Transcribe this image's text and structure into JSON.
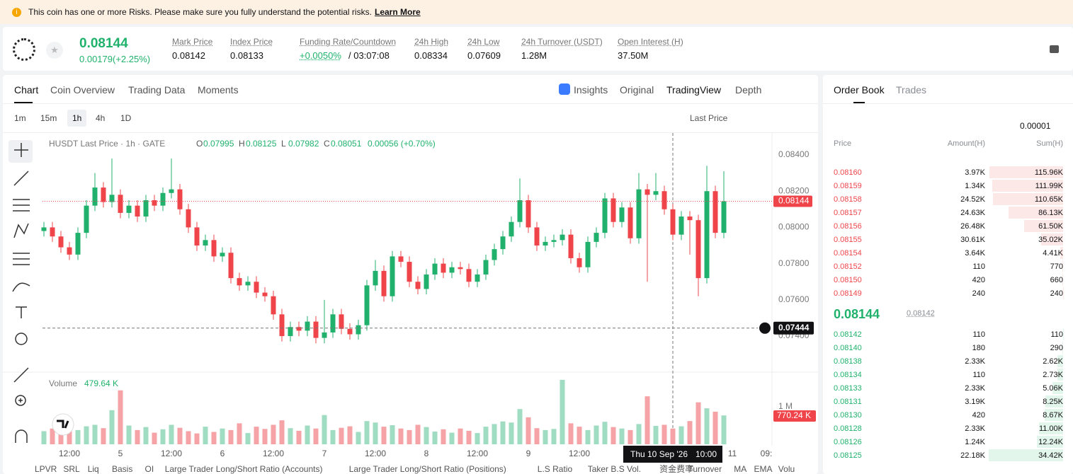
{
  "warning": {
    "text": "This coin has one or more Risks. Please make sure you fully understand the potential risks.",
    "link": "Learn More"
  },
  "header": {
    "price": "0.08144",
    "change": "0.00179(+2.25%)",
    "stats": [
      {
        "label": "Mark Price",
        "value": "0.08142"
      },
      {
        "label": "Index Price",
        "value": "0.08133"
      },
      {
        "label": "Funding Rate/Countdown",
        "value": "+0.0050%",
        "extra": "/ 03:07:08"
      },
      {
        "label": "24h High",
        "value": "0.08334"
      },
      {
        "label": "24h Low",
        "value": "0.07609"
      },
      {
        "label": "24h Turnover (USDT)",
        "value": "1.28M"
      },
      {
        "label": "Open Interest (H)",
        "value": "37.50M"
      }
    ]
  },
  "tabs": [
    "Chart",
    "Coin Overview",
    "Trading Data",
    "Moments"
  ],
  "view_tabs": [
    "Insights",
    "Original",
    "TradingView",
    "Depth"
  ],
  "intervals": [
    "1m",
    "15m",
    "1h",
    "4h",
    "1D"
  ],
  "price_type": "Last Price",
  "legend": {
    "symbol": "HUSDT Last Price · 1h · GATE",
    "ohlc": [
      {
        "key": "O",
        "value": "0.07995"
      },
      {
        "key": "H",
        "value": "0.08125"
      },
      {
        "key": "L",
        "value": "0.07982"
      },
      {
        "key": "C",
        "value": "0.08051"
      }
    ],
    "change": "0.00056 (+0.70%)"
  },
  "volume_legend": {
    "name": "Volume",
    "value": "479.64 K",
    "last": "770.24 K"
  },
  "chart_data": {
    "type": "candlestick",
    "up_color": "#20b26c",
    "down_color": "#ef454a",
    "grid": false,
    "categories": [
      null,
      null,
      null,
      "12:00",
      null,
      null,
      null,
      null,
      null,
      "5",
      null,
      null,
      null,
      null,
      null,
      "12:00",
      null,
      null,
      null,
      null,
      null,
      "6",
      null,
      null,
      null,
      null,
      null,
      "12:00",
      null,
      null,
      null,
      null,
      null,
      "7",
      null,
      null,
      null,
      null,
      null,
      "12:00",
      null,
      null,
      null,
      null,
      null,
      "8",
      null,
      null,
      null,
      null,
      null,
      "12:00",
      null,
      null,
      null,
      null,
      null,
      "9",
      null,
      null,
      null,
      null,
      null,
      "12:00",
      null,
      null,
      null,
      null,
      null,
      null,
      null,
      null,
      null,
      null,
      null,
      null,
      null,
      null,
      null,
      null,
      null
    ],
    "extra_x_labels": [
      "11",
      "09:"
    ],
    "open": [
      0.0798,
      0.08,
      0.0795,
      0.0789,
      0.0785,
      0.0797,
      0.0812,
      0.0822,
      0.0814,
      0.0818,
      0.0808,
      0.0812,
      0.0806,
      0.0815,
      0.0812,
      0.0819,
      0.0821,
      0.081,
      0.08,
      0.079,
      0.0793,
      0.0784,
      0.0786,
      0.0772,
      0.0768,
      0.077,
      0.0764,
      0.0762,
      0.0752,
      0.074,
      0.0745,
      0.0743,
      0.0748,
      0.0739,
      0.0742,
      0.0752,
      0.0744,
      0.0741,
      0.0746,
      0.0768,
      0.0776,
      0.0762,
      0.0784,
      0.0781,
      0.077,
      0.0766,
      0.0774,
      0.078,
      0.0775,
      0.0778,
      0.0777,
      0.077,
      0.0774,
      0.0782,
      0.0788,
      0.0795,
      0.0803,
      0.0815,
      0.08,
      0.079,
      0.0792,
      0.0793,
      0.0796,
      0.0783,
      0.0778,
      0.0792,
      0.0797,
      0.0816,
      0.0803,
      0.0811,
      0.0794,
      0.0821,
      0.0818,
      0.082,
      0.081,
      0.0796,
      0.0806,
      0.0804,
      0.0772,
      0.082,
      0.0797
    ],
    "high": [
      0.0803,
      0.0803,
      0.0798,
      0.0792,
      0.08,
      0.0815,
      0.083,
      0.0825,
      0.0838,
      0.0821,
      0.0815,
      0.0815,
      0.0818,
      0.0818,
      0.0822,
      0.0838,
      0.0824,
      0.0813,
      0.0803,
      0.0796,
      0.0796,
      0.0789,
      0.0789,
      0.0775,
      0.0773,
      0.0773,
      0.0767,
      0.0765,
      0.0755,
      0.0748,
      0.0748,
      0.0751,
      0.0751,
      0.076,
      0.0755,
      0.0755,
      0.0747,
      0.0749,
      0.0771,
      0.0782,
      0.0779,
      0.0787,
      0.0787,
      0.0784,
      0.0773,
      0.0777,
      0.0783,
      0.0783,
      0.0781,
      0.0781,
      0.078,
      0.0777,
      0.0785,
      0.0791,
      0.0798,
      0.0806,
      0.0827,
      0.0818,
      0.0803,
      0.0795,
      0.0796,
      0.0799,
      0.0799,
      0.0786,
      0.0795,
      0.08,
      0.0819,
      0.0819,
      0.0814,
      0.0814,
      0.083,
      0.0824,
      0.083,
      0.0823,
      0.0813,
      0.0809,
      0.0809,
      0.0807,
      0.0834,
      0.0823,
      0.0831
    ],
    "low": [
      0.0795,
      0.0792,
      0.0786,
      0.0782,
      0.0782,
      0.0794,
      0.0809,
      0.0811,
      0.0811,
      0.0805,
      0.0805,
      0.0803,
      0.0803,
      0.0809,
      0.0809,
      0.0816,
      0.0807,
      0.0797,
      0.0787,
      0.0787,
      0.0781,
      0.0781,
      0.0769,
      0.0765,
      0.0765,
      0.0761,
      0.0759,
      0.0749,
      0.0737,
      0.0737,
      0.074,
      0.074,
      0.0736,
      0.0736,
      0.0739,
      0.0741,
      0.0738,
      0.0738,
      0.0743,
      0.0765,
      0.0759,
      0.0759,
      0.0778,
      0.0767,
      0.0763,
      0.0763,
      0.0771,
      0.0772,
      0.0772,
      0.0774,
      0.0767,
      0.0767,
      0.0771,
      0.0779,
      0.0785,
      0.0792,
      0.08,
      0.0797,
      0.0787,
      0.0787,
      0.0789,
      0.079,
      0.078,
      0.0775,
      0.0775,
      0.0789,
      0.0794,
      0.08,
      0.08,
      0.0791,
      0.0791,
      0.077,
      0.0815,
      0.0807,
      0.0793,
      0.0793,
      0.0785,
      0.0762,
      0.0769,
      0.0794,
      0.0794
    ],
    "close": [
      0.08,
      0.0795,
      0.0789,
      0.0785,
      0.0797,
      0.0812,
      0.0822,
      0.0814,
      0.0818,
      0.0808,
      0.0812,
      0.0806,
      0.0815,
      0.0812,
      0.0819,
      0.0821,
      0.081,
      0.08,
      0.079,
      0.0793,
      0.0784,
      0.0786,
      0.0772,
      0.0768,
      0.077,
      0.0764,
      0.0762,
      0.0752,
      0.074,
      0.0745,
      0.0743,
      0.0748,
      0.0739,
      0.0742,
      0.0752,
      0.0744,
      0.0741,
      0.0746,
      0.0768,
      0.0776,
      0.0762,
      0.0784,
      0.0781,
      0.077,
      0.0766,
      0.0774,
      0.078,
      0.0775,
      0.0778,
      0.0777,
      0.077,
      0.0774,
      0.0782,
      0.0788,
      0.0795,
      0.0803,
      0.0815,
      0.08,
      0.079,
      0.0792,
      0.0793,
      0.0796,
      0.0783,
      0.0778,
      0.0792,
      0.0797,
      0.0816,
      0.0803,
      0.0811,
      0.0794,
      0.0821,
      0.0818,
      0.082,
      0.081,
      0.0796,
      0.0806,
      0.0804,
      0.0772,
      0.082,
      0.0797,
      0.08144
    ],
    "ylim": [
      0.07205,
      0.08521
    ],
    "yticks": [
      {
        "value": 0.084,
        "label": "0.08400"
      },
      {
        "value": 0.082,
        "label": "0.08200"
      },
      {
        "value": 0.08,
        "label": "0.08000"
      },
      {
        "value": 0.078,
        "label": "0.07800"
      },
      {
        "value": 0.076,
        "label": "0.07600"
      },
      {
        "value": 0.074,
        "label": "0.07400"
      }
    ],
    "last_price": {
      "value": 0.08144,
      "label": "0.08144"
    },
    "crosshair": {
      "price": {
        "value": 0.07444,
        "label": "0.07444"
      },
      "date": "Thu 10 Sep '26",
      "time": "10:00"
    },
    "volume": {
      "up_color": "#9fdcc2",
      "down_color": "#f5a3a6",
      "ylim": [
        0,
        1850000
      ],
      "yticks": [
        {
          "value": 1000000,
          "label": "1 M"
        }
      ],
      "values": [
        350000,
        420000,
        300000,
        560000,
        380000,
        480000,
        520000,
        430000,
        910000,
        1440000,
        500000,
        380000,
        460000,
        310000,
        400000,
        520000,
        440000,
        350000,
        290000,
        470000,
        330000,
        420000,
        380000,
        560000,
        300000,
        470000,
        410000,
        520000,
        640000,
        430000,
        360000,
        500000,
        420000,
        780000,
        380000,
        440000,
        480000,
        330000,
        620000,
        580000,
        470000,
        510000,
        420000,
        380000,
        520000,
        460000,
        340000,
        400000,
        310000,
        420000,
        360000,
        300000,
        470000,
        540000,
        610000,
        580000,
        940000,
        720000,
        430000,
        380000,
        410000,
        1720000,
        560000,
        470000,
        380000,
        500000,
        600000,
        460000,
        420000,
        380000,
        540000,
        1280000,
        490000,
        520000,
        420000,
        480000,
        620000,
        1120000,
        960000,
        870000,
        770240
      ]
    }
  },
  "indicators": [
    "LPVR",
    "SRL",
    "Liq",
    "Basis",
    "OI",
    "Large Trader Long/Short Ratio (Accounts)",
    "Large Trader Long/Short Ratio (Positions)",
    "L.S Ratio",
    "Taker B.S Vol.",
    "资金费率",
    "Turnover",
    "MA",
    "EMA",
    "Volu"
  ],
  "order_book": {
    "tabs": [
      "Order Book",
      "Trades"
    ],
    "precision": "0.00001",
    "columns": [
      "Price",
      "Amount(H)",
      "Sum(H)"
    ],
    "asks": [
      {
        "price": "0.08160",
        "amount": "3.97K",
        "sum": {
          "value": 115960,
          "label": "115.96K"
        }
      },
      {
        "price": "0.08159",
        "amount": "1.34K",
        "sum": {
          "value": 111990,
          "label": "111.99K"
        }
      },
      {
        "price": "0.08158",
        "amount": "24.52K",
        "sum": {
          "value": 110650,
          "label": "110.65K"
        }
      },
      {
        "price": "0.08157",
        "amount": "24.63K",
        "sum": {
          "value": 86130,
          "label": "86.13K"
        }
      },
      {
        "price": "0.08156",
        "amount": "26.48K",
        "sum": {
          "value": 61500,
          "label": "61.50K"
        }
      },
      {
        "price": "0.08155",
        "amount": "30.61K",
        "sum": {
          "value": 35020,
          "label": "35.02K"
        }
      },
      {
        "price": "0.08154",
        "amount": "3.64K",
        "sum": {
          "value": 4410,
          "label": "4.41K"
        }
      },
      {
        "price": "0.08152",
        "amount": "110",
        "sum": 770
      },
      {
        "price": "0.08150",
        "amount": "420",
        "sum": 660
      },
      {
        "price": "0.08149",
        "amount": "240",
        "sum": 240
      }
    ],
    "mid": {
      "price": "0.08144",
      "mark": "0.08142"
    },
    "bids": [
      {
        "price": "0.08142",
        "amount": "110",
        "sum": 110
      },
      {
        "price": "0.08140",
        "amount": "180",
        "sum": 290
      },
      {
        "price": "0.08138",
        "amount": "2.33K",
        "sum": {
          "value": 2620,
          "label": "2.62K"
        }
      },
      {
        "price": "0.08134",
        "amount": "110",
        "sum": {
          "value": 2730,
          "label": "2.73K"
        }
      },
      {
        "price": "0.08133",
        "amount": "2.33K",
        "sum": {
          "value": 5060,
          "label": "5.06K"
        }
      },
      {
        "price": "0.08131",
        "amount": "3.19K",
        "sum": {
          "value": 8250,
          "label": "8.25K"
        }
      },
      {
        "price": "0.08130",
        "amount": "420",
        "sum": {
          "value": 8670,
          "label": "8.67K"
        }
      },
      {
        "price": "0.08128",
        "amount": "2.33K",
        "sum": {
          "value": 11000,
          "label": "11.00K"
        }
      },
      {
        "price": "0.08126",
        "amount": "1.24K",
        "sum": {
          "value": 12240,
          "label": "12.24K"
        }
      },
      {
        "price": "0.08125",
        "amount": "22.18K",
        "sum": {
          "value": 34420,
          "label": "34.42K"
        }
      }
    ]
  }
}
